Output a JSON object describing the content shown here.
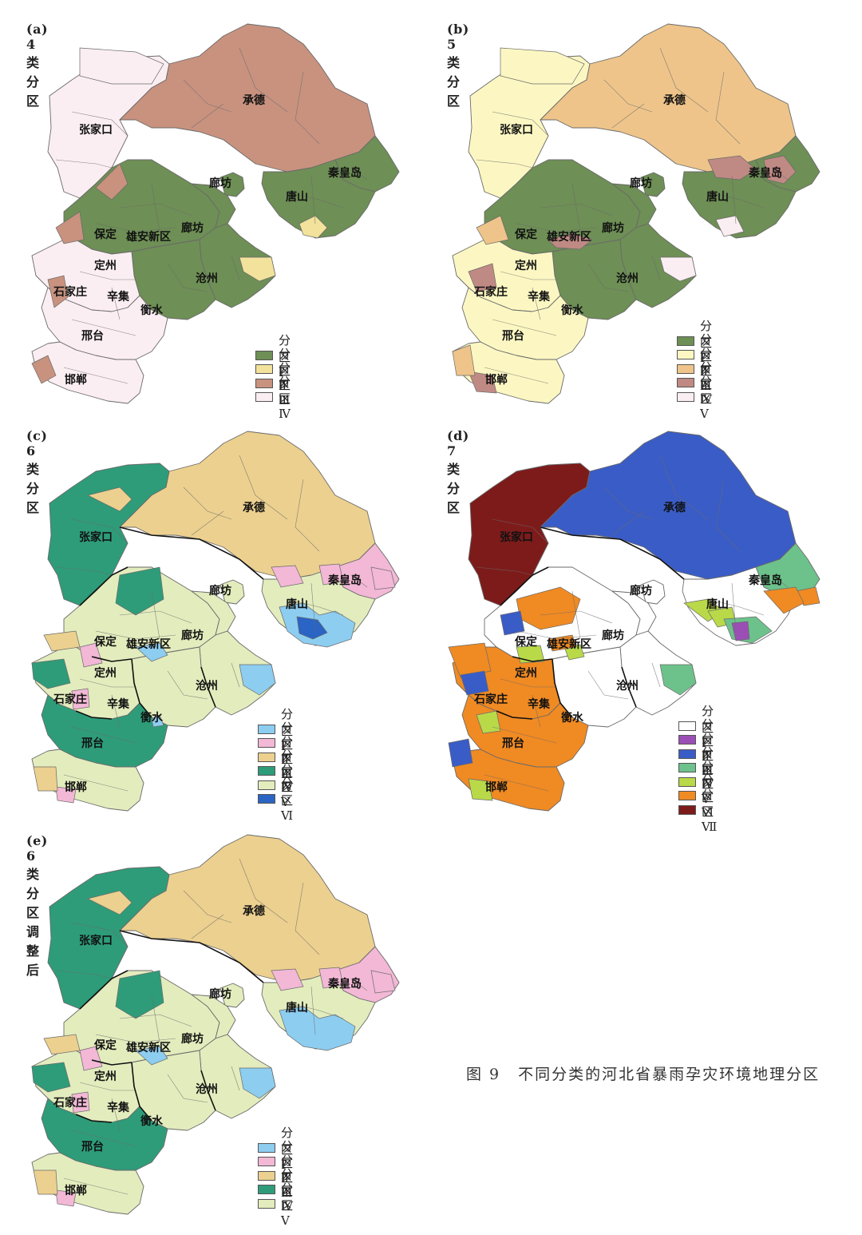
{
  "caption": {
    "figure_no": "图 9",
    "text": "不同分类的河北省暴雨孕灾环境地理分区"
  },
  "panels": [
    {
      "title": "(a) 4类分区",
      "cities": [
        "承德",
        "张家口",
        "秦皇岛",
        "廊坊",
        "唐山",
        "保定",
        "廊坊",
        "雄安新区",
        "定州",
        "沧州",
        "石家庄",
        "辛集",
        "衡水",
        "邢台",
        "邯郸"
      ],
      "legend": [
        {
          "label": "分区Ⅰ",
          "color": "#6e8f55"
        },
        {
          "label": "分区Ⅱ",
          "color": "#f2e29b"
        },
        {
          "label": "分区Ⅲ",
          "color": "#c8927f"
        },
        {
          "label": "分区Ⅳ",
          "color": "#fbeef2"
        }
      ]
    },
    {
      "title": "(b) 5类分区",
      "cities": [
        "承德",
        "张家口",
        "秦皇岛",
        "廊坊",
        "唐山",
        "保定",
        "廊坊",
        "雄安新区",
        "定州",
        "沧州",
        "石家庄",
        "辛集",
        "衡水",
        "邢台",
        "邯郸"
      ],
      "legend": [
        {
          "label": "分区Ⅰ",
          "color": "#6e8f55"
        },
        {
          "label": "分区Ⅱ",
          "color": "#fcf7c2"
        },
        {
          "label": "分区Ⅲ",
          "color": "#eec48a"
        },
        {
          "label": "分区Ⅳ",
          "color": "#c08a84"
        },
        {
          "label": "分区Ⅴ",
          "color": "#fbeef2"
        }
      ]
    },
    {
      "title": "(c) 6类分区",
      "cities": [
        "承德",
        "张家口",
        "秦皇岛",
        "廊坊",
        "唐山",
        "保定",
        "廊坊",
        "雄安新区",
        "定州",
        "沧州",
        "石家庄",
        "辛集",
        "衡水",
        "邢台",
        "邯郸"
      ],
      "legend": [
        {
          "label": "分区Ⅰ",
          "color": "#8dcdf0"
        },
        {
          "label": "分区Ⅱ",
          "color": "#f2b8d6"
        },
        {
          "label": "分区Ⅲ",
          "color": "#ecd08f"
        },
        {
          "label": "分区Ⅳ",
          "color": "#2e9c79"
        },
        {
          "label": "分区Ⅴ",
          "color": "#e3ecbd"
        },
        {
          "label": "分区Ⅵ",
          "color": "#2a64c4"
        }
      ]
    },
    {
      "title": "(d) 7类分区",
      "cities": [
        "承德",
        "张家口",
        "秦皇岛",
        "廊坊",
        "唐山",
        "保定",
        "廊坊",
        "雄安新区",
        "定州",
        "沧州",
        "石家庄",
        "辛集",
        "衡水",
        "邢台",
        "邯郸"
      ],
      "legend": [
        {
          "label": "分区Ⅰ",
          "color": "#ffffff"
        },
        {
          "label": "分区Ⅱ",
          "color": "#9b4fb5"
        },
        {
          "label": "分区Ⅲ",
          "color": "#3a5cc6"
        },
        {
          "label": "分区Ⅳ",
          "color": "#6dc28b"
        },
        {
          "label": "分区Ⅴ",
          "color": "#b9d949"
        },
        {
          "label": "分区Ⅵ",
          "color": "#f08a23"
        },
        {
          "label": "分区Ⅶ",
          "color": "#7d1b1b"
        }
      ]
    },
    {
      "title": "(e) 6类分区调整后",
      "cities": [
        "承德",
        "张家口",
        "秦皇岛",
        "廊坊",
        "唐山",
        "保定",
        "廊坊",
        "雄安新区",
        "定州",
        "沧州",
        "石家庄",
        "辛集",
        "衡水",
        "邢台",
        "邯郸"
      ],
      "legend": [
        {
          "label": "分区Ⅰ",
          "color": "#8dcdf0"
        },
        {
          "label": "分区Ⅱ",
          "color": "#f2b8d6"
        },
        {
          "label": "分区Ⅲ",
          "color": "#ecd08f"
        },
        {
          "label": "分区Ⅳ",
          "color": "#2e9c79"
        },
        {
          "label": "分区Ⅴ",
          "color": "#e3ecbd"
        }
      ]
    }
  ],
  "colors": {
    "boundary": "#6a6a6a",
    "thick_boundary": "#111111"
  }
}
